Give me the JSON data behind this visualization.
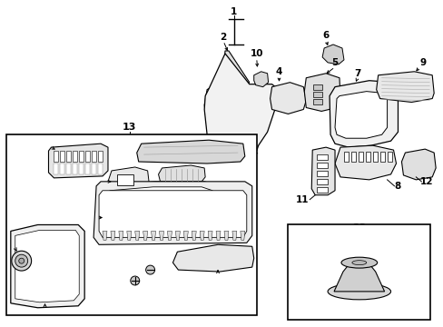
{
  "background_color": "#ffffff",
  "line_color": "#000000",
  "fig_width": 4.89,
  "fig_height": 3.6,
  "dpi": 100,
  "label_fontsize": 7.5
}
